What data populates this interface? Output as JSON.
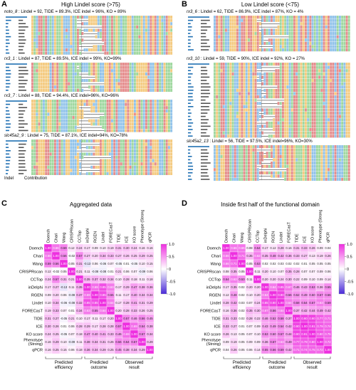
{
  "panels": {
    "A": {
      "letter": "A",
      "title": "High Lindel score (>75)"
    },
    "B": {
      "letter": "B",
      "title": "Low Lindel score (<75)"
    },
    "C": {
      "letter": "C",
      "title": "Aggregated data"
    },
    "D": {
      "letter": "D",
      "title": "Inside first half of the functional domain"
    }
  },
  "samples_A": [
    {
      "gene": "noto_8",
      "stats": " : Lindel = 92, TIDE = 89.3%, ICE indel = 96%, KO = 89%"
    },
    {
      "gene": "rx3_1",
      "stats": " : Lindel = 87, TIDE = 89.5%, ICE indel = 99%, KO=99%"
    },
    {
      "gene": "rx3_7",
      "stats": " : Lindel = 88, TIDE = 94.4%, ICE indel=96%, KO=96%"
    },
    {
      "gene": "slc45a2_9",
      "stats": " : Lindel = 75, TIDE = 87.1%, ICE indel=94%, KO=78%"
    }
  ],
  "samples_B": [
    {
      "gene": "rx3_6",
      "stats": " : Lindel = 62, TIDE = 86.9%, ICE indel = 87%, KO = 4%"
    },
    {
      "gene": "rx3_10",
      "stats": " : Lindel = 59, TIDE = 90%, ICE indel = 92%, KO = 27%"
    },
    {
      "gene": "slc45a2_13",
      "stats": " : Lindel = 56, TIDE = 97.5%, ICE indel=96%, KO=30%"
    }
  ],
  "footer_A": {
    "indel": "Indel",
    "contribution": "Contribution"
  },
  "colors": {
    "A": "#e07a7a",
    "C": "#7fb8e6",
    "G": "#f2c26b",
    "T": "#8fd18f",
    "pink": "#f06bd2",
    "magenta": "#ee2fe0",
    "white": "#ffffff",
    "blue": "#4a2bd8"
  },
  "chart_data": [
    {
      "type": "heatmap",
      "title": "Aggregated data",
      "labels": [
        "Doench",
        "Chari",
        "Wang",
        "CRISPRscan",
        "CCTop",
        "inDelphi",
        "RGEN",
        "Lindel",
        "FORECasT",
        "TIDE",
        "ICE",
        "KO score",
        "Phenotype (Strong)",
        "qPCR"
      ],
      "values": [
        [
          1.0,
          0.66,
          0.59,
          0.12,
          0.24,
          0.17,
          0.09,
          0.1,
          0.19,
          0.31,
          0.3,
          0.24,
          0.16,
          0.16
        ],
        [
          0.66,
          1.0,
          0.56,
          -0.02,
          0.57,
          0.27,
          0.2,
          0.34,
          0.33,
          0.27,
          0.26,
          0.25,
          0.29,
          0.25
        ],
        [
          0.59,
          0.56,
          1.0,
          0.05,
          0.31,
          -0.13,
          0.06,
          -0.06,
          0.07,
          -0.05,
          0.01,
          -0.05,
          0.1,
          0.15
        ],
        [
          0.12,
          -0.02,
          0.05,
          1.0,
          0.21,
          0.11,
          -0.08,
          -0.08,
          0.01,
          0.21,
          0.06,
          0.07,
          -0.09,
          0.06
        ],
        [
          0.24,
          0.57,
          0.31,
          0.21,
          1.0,
          0.35,
          0.37,
          0.32,
          0.34,
          0.1,
          0.28,
          0.18,
          0.11,
          0.18
        ],
        [
          0.17,
          0.27,
          -0.13,
          0.11,
          0.35,
          1.0,
          0.69,
          0.85,
          0.63,
          0.17,
          0.29,
          0.47,
          0.38,
          0.36
        ],
        [
          0.09,
          0.2,
          0.06,
          -0.08,
          0.37,
          0.69,
          1.0,
          0.85,
          0.55,
          0.11,
          0.17,
          0.4,
          0.34,
          0.34
        ],
        [
          0.1,
          0.34,
          -0.06,
          -0.08,
          0.32,
          0.85,
          0.85,
          1.0,
          0.64,
          0.17,
          0.28,
          0.41,
          0.31,
          0.29
        ],
        [
          0.19,
          0.33,
          0.07,
          0.01,
          0.34,
          0.63,
          0.55,
          0.64,
          1.0,
          0.2,
          0.28,
          0.33,
          0.26,
          0.25
        ],
        [
          0.31,
          0.27,
          -0.05,
          0.21,
          0.1,
          0.17,
          0.11,
          0.17,
          0.2,
          1.0,
          0.57,
          0.46,
          0.56,
          0.45
        ],
        [
          0.3,
          0.26,
          0.01,
          0.06,
          0.28,
          0.29,
          0.17,
          0.28,
          0.28,
          0.57,
          1.0,
          0.69,
          0.54,
          0.38
        ],
        [
          0.24,
          0.25,
          -0.05,
          0.07,
          0.18,
          0.47,
          0.4,
          0.41,
          0.33,
          0.46,
          0.69,
          1.0,
          0.57,
          0.34
        ],
        [
          0.16,
          0.29,
          0.1,
          -0.09,
          0.11,
          0.38,
          0.34,
          0.31,
          0.26,
          0.56,
          0.54,
          0.57,
          1.0,
          0.29
        ],
        [
          0.16,
          0.25,
          0.15,
          0.06,
          0.18,
          0.36,
          0.34,
          0.29,
          0.25,
          0.45,
          0.38,
          0.34,
          0.29,
          1.0
        ]
      ],
      "scale": [
        -1.0,
        1.0
      ],
      "ticks": [
        "1.0",
        "0.5",
        "0",
        "-0.5",
        "-1.0"
      ],
      "groups": [
        "Predicted efficiency",
        "Predicted outcome",
        "Observed result"
      ]
    },
    {
      "type": "heatmap",
      "title": "Inside first half of the functional domain",
      "labels": [
        "Doench",
        "Chari",
        "Wang",
        "CRISPRscan",
        "CCTop",
        "inDelphi",
        "RGEN",
        "Lindel",
        "FORECasT",
        "TIDE",
        "ICE",
        "KO score",
        "Phenotype (Strong)",
        "qPCR"
      ],
      "values": [
        [
          1.0,
          0.66,
          0.66,
          0.08,
          0.54,
          0.17,
          0.12,
          0.28,
          0.16,
          0.31,
          0.33,
          0.26,
          0.09,
          0.04
        ],
        [
          0.66,
          1.0,
          0.71,
          0.35,
          0.62,
          0.35,
          0.48,
          0.42,
          0.36,
          0.33,
          0.27,
          0.13,
          0.19,
          0.26
        ],
        [
          0.66,
          0.71,
          1.0,
          0.05,
          0.53,
          0.02,
          0.02,
          0.03,
          0.02,
          0.02,
          0.01,
          0.05,
          0.05,
          0.05
        ],
        [
          0.08,
          0.35,
          0.05,
          1.0,
          0.11,
          0.2,
          0.1,
          0.07,
          0.35,
          0.28,
          0.07,
          0.07,
          0.09,
          0.06
        ],
        [
          0.54,
          0.62,
          0.53,
          0.11,
          1.0,
          0.2,
          0.2,
          0.24,
          0.3,
          0.22,
          0.09,
          0.1,
          0.09,
          0.14
        ],
        [
          0.17,
          0.35,
          0.02,
          0.2,
          0.2,
          1.0,
          0.64,
          0.85,
          0.67,
          0.46,
          0.43,
          0.53,
          0.36,
          0.55
        ],
        [
          0.12,
          0.48,
          0.02,
          0.1,
          0.2,
          0.64,
          1.0,
          0.9,
          0.56,
          0.52,
          0.49,
          0.5,
          0.57,
          0.56
        ],
        [
          0.28,
          0.42,
          0.03,
          0.07,
          0.24,
          0.85,
          0.9,
          1.0,
          0.64,
          0.58,
          0.54,
          0.57,
          0.63,
          0.59
        ],
        [
          0.16,
          0.36,
          0.02,
          0.35,
          0.3,
          0.67,
          0.56,
          0.64,
          1.0,
          0.37,
          0.42,
          0.44,
          0.49,
          0.42
        ],
        [
          0.31,
          0.33,
          0.02,
          0.28,
          0.22,
          0.46,
          0.52,
          0.58,
          0.37,
          1.0,
          0.9,
          0.9,
          0.77,
          0.71
        ],
        [
          0.33,
          0.27,
          0.01,
          0.07,
          0.09,
          0.43,
          0.49,
          0.54,
          0.42,
          0.9,
          1.0,
          0.91,
          0.79,
          0.74
        ],
        [
          0.26,
          0.13,
          0.05,
          0.07,
          0.1,
          0.53,
          0.5,
          0.57,
          0.44,
          0.9,
          0.91,
          1.0,
          0.8,
          0.75
        ],
        [
          0.09,
          0.19,
          0.05,
          0.09,
          0.09,
          0.36,
          0.57,
          0.63,
          0.49,
          0.77,
          0.79,
          0.8,
          1.0,
          0.72
        ],
        [
          0.04,
          0.26,
          0.05,
          0.06,
          0.14,
          0.55,
          0.56,
          0.59,
          0.42,
          0.71,
          0.74,
          0.75,
          0.72,
          1.0
        ]
      ],
      "scale": [
        -1.0,
        1.0
      ],
      "ticks": [
        "1.0",
        "0.5",
        "0",
        "-0.5",
        "-1.0"
      ],
      "groups": [
        "Predicted efficiency",
        "Predicted outcome",
        "Observed result"
      ]
    }
  ]
}
